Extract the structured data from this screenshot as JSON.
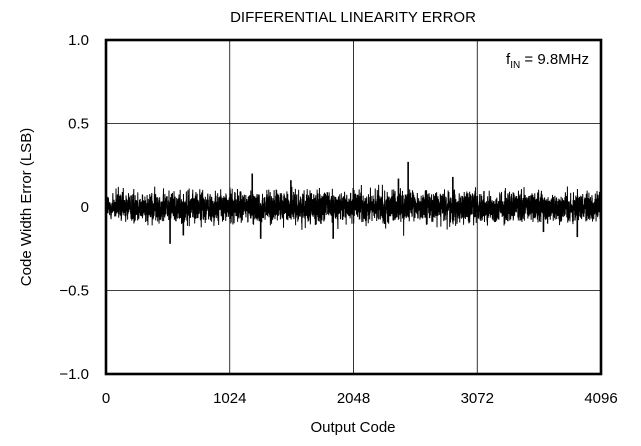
{
  "chart_data": {
    "type": "line",
    "title": "DIFFERENTIAL LINEARITY ERROR",
    "xlabel": "Output Code",
    "ylabel": "Code Width Error (LSB)",
    "xlim": [
      0,
      4096
    ],
    "ylim": [
      -1.0,
      1.0
    ],
    "x_ticks": [
      0,
      1024,
      2048,
      3072,
      4096
    ],
    "x_tick_labels": [
      "0",
      "1024",
      "2048",
      "3072",
      "4096"
    ],
    "y_ticks": [
      1.0,
      0.5,
      0,
      -0.5,
      -1.0
    ],
    "y_tick_labels": [
      "1.0",
      "0.5",
      "0",
      "−0.5",
      "−1.0"
    ],
    "grid": true,
    "annotation": {
      "base": "f",
      "subscript": "IN",
      "rest": " = 9.8MHz",
      "placement": "top-right"
    },
    "series": [
      {
        "noise": {
          "x_start": 0,
          "x_end": 4095,
          "typical_amplitude": 0.08,
          "peak_max": 0.27,
          "peak_min": -0.24
        },
        "notable_points": [
          {
            "x": 530,
            "y": -0.22
          },
          {
            "x": 640,
            "y": -0.17
          },
          {
            "x": 1210,
            "y": 0.2
          },
          {
            "x": 1280,
            "y": -0.19
          },
          {
            "x": 1530,
            "y": 0.16
          },
          {
            "x": 1880,
            "y": -0.19
          },
          {
            "x": 2420,
            "y": 0.17
          },
          {
            "x": 2500,
            "y": 0.27
          },
          {
            "x": 2870,
            "y": 0.18
          },
          {
            "x": 3620,
            "y": -0.15
          },
          {
            "x": 3900,
            "y": -0.18
          }
        ]
      }
    ],
    "line_color": "#000000",
    "frame_color": "#000000",
    "grid_color": "#000000"
  }
}
